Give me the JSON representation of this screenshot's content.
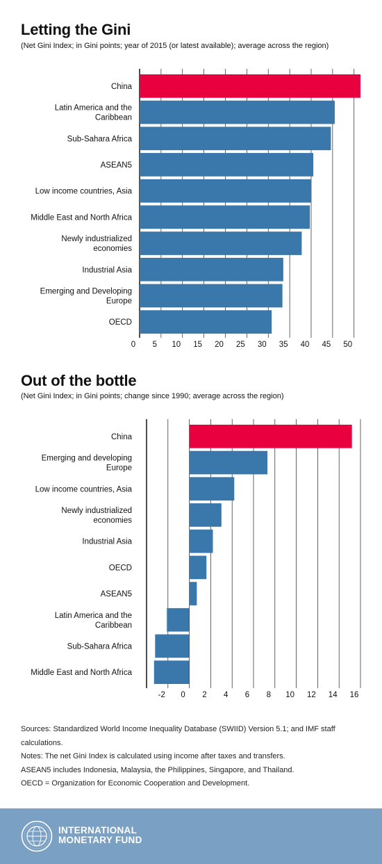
{
  "chart_data": [
    {
      "type": "bar",
      "orientation": "horizontal",
      "title": "Letting the Gini",
      "subtitle": "(Net Gini Index; in Gini points; year of 2015 (or latest available); average across the region)",
      "categories": [
        "China",
        "Latin America and the Caribbean",
        "Sub-Sahara Africa",
        "ASEAN5",
        "Low income countries, Asia",
        "Middle East and North Africa",
        "Newly industrialized economies",
        "Industrial Asia",
        "Emerging and Developing Europe",
        "OECD"
      ],
      "category_lines": [
        [
          "China"
        ],
        [
          "Latin America and the",
          "Caribbean"
        ],
        [
          "Sub-Sahara Africa"
        ],
        [
          "ASEAN5"
        ],
        [
          "Low income countries, Asia"
        ],
        [
          "Middle East and North Africa"
        ],
        [
          "Newly industrialized",
          "economies"
        ],
        [
          "Industrial Asia"
        ],
        [
          "Emerging and Developing",
          "Europe"
        ],
        [
          "OECD"
        ]
      ],
      "values": [
        51.5,
        45.5,
        44.6,
        40.5,
        40.0,
        39.7,
        37.8,
        33.5,
        33.3,
        30.8
      ],
      "highlight": "China",
      "xlim": [
        0,
        51.5
      ],
      "ticks": [
        0,
        5,
        10,
        15,
        20,
        25,
        30,
        35,
        40,
        45,
        50
      ],
      "grid": true
    },
    {
      "type": "bar",
      "orientation": "horizontal",
      "title": "Out of the bottle",
      "subtitle": "(Net Gini Index; in Gini points; change since 1990; average across the region)",
      "categories": [
        "China",
        "Emerging and developing Europe",
        "Low income countries, Asia",
        "Newly industrialized economies",
        "Industrial Asia",
        "OECD",
        "ASEAN5",
        "Latin America and the Caribbean",
        "Sub-Sahara Africa",
        "Middle East and North Africa"
      ],
      "category_lines": [
        [
          "China"
        ],
        [
          "Emerging and developing",
          "Europe"
        ],
        [
          "Low income countries, Asia"
        ],
        [
          "Newly industrialized",
          "economies"
        ],
        [
          "Industrial Asia"
        ],
        [
          "OECD"
        ],
        [
          "ASEAN5"
        ],
        [
          "Latin America and the",
          "Caribbean"
        ],
        [
          "Sub-Sahara Africa"
        ],
        [
          "Middle East and North Africa"
        ]
      ],
      "values": [
        15.2,
        7.3,
        4.2,
        3.0,
        2.2,
        1.6,
        0.7,
        -2.1,
        -3.2,
        -3.3
      ],
      "highlight": "China",
      "xlim": [
        -4,
        16
      ],
      "ticks": [
        -2,
        0,
        2,
        4,
        6,
        8,
        10,
        12,
        14,
        16
      ],
      "grid": true
    }
  ],
  "colors": {
    "bar": "#3a77aa",
    "highlight": "#e8003f",
    "grid": "#222222",
    "footer": "#7aa0c3"
  },
  "notes": [
    "Sources: Standardized World Income Inequality Database (SWIID) Version 5.1; and IMF staff calculations.",
    "Notes: The net Gini Index is calculated using income after taxes and transfers.",
    "ASEAN5 includes Indonesia, Malaysia, the Philippines, Singapore, and Thailand.",
    "OECD = Organization for Economic Cooperation and Development."
  ],
  "footer": {
    "logo_line1": "INTERNATIONAL",
    "logo_line2": "MONETARY FUND",
    "logo_icon": "imf-seal-icon"
  }
}
